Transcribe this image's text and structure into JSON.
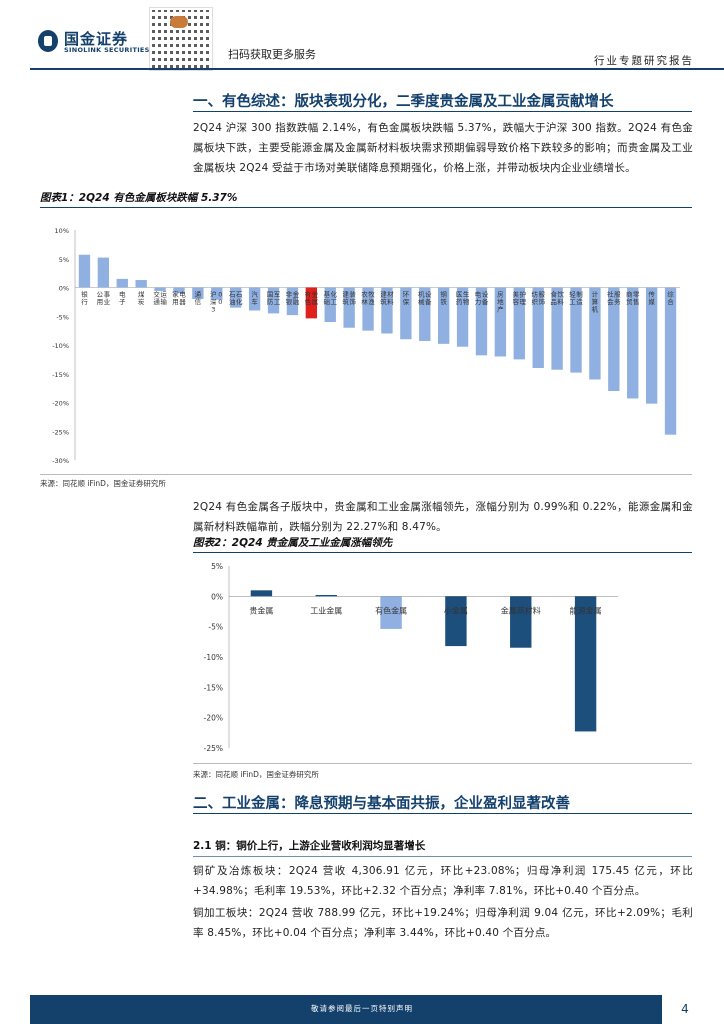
{
  "header": {
    "brand_cn": "国金证券",
    "brand_en": "SINOLINK SECURITIES",
    "scan_text": "扫码获取更多服务",
    "report_type": "行业专题研究报告"
  },
  "section1": {
    "title": "一、有色综述：版块表现分化，二季度贵金属及工业金属贡献增长",
    "para": "2Q24 沪深 300 指数跌幅 2.14%，有色金属板块跌幅 5.37%，跌幅大于沪深 300 指数。2Q24 有色金属板块下跌，主要受能源金属及金属新材料板块需求预期偏弱导致价格下跌较多的影响；而贵金属及工业金属板块 2Q24 受益于市场对美联储降息预期强化，价格上涨，并带动板块内企业业绩增长。"
  },
  "figure1": {
    "title": "图表1：2Q24 有色金属板块跌幅 5.37%",
    "source": "来源：同花顺 iFinD，国金证券研究所",
    "chart_data": {
      "type": "bar",
      "ylim": [
        -30,
        10
      ],
      "yticks": [
        "10%",
        "5%",
        "0%",
        "-5%",
        "-10%",
        "-15%",
        "-20%",
        "-25%",
        "-30%"
      ],
      "categories": [
        "银行",
        "公用事业",
        "电子",
        "煤炭",
        "交通运输",
        "家用电器",
        "通信",
        "沪深300",
        "石油石化",
        "汽车",
        "国防军工",
        "非银金融",
        "有色金属",
        "基础化工",
        "建筑装饰",
        "农林牧渔",
        "建筑材料",
        "环保",
        "机械设备",
        "钢铁",
        "医药生物",
        "电力设备",
        "房地产",
        "美容护理",
        "纺织服饰",
        "食品饮料",
        "轻工制造",
        "计算机",
        "社会服务",
        "商贸零售",
        "传媒",
        "综合"
      ],
      "values": [
        5.7,
        5.2,
        1.5,
        1.3,
        -0.6,
        -1.0,
        -2.0,
        -2.14,
        -3.5,
        -4.0,
        -4.5,
        -4.8,
        -5.37,
        -6.0,
        -7.0,
        -7.5,
        -8.0,
        -9.0,
        -9.3,
        -9.8,
        -10.3,
        -11.8,
        -12.0,
        -12.5,
        -14.0,
        -14.3,
        -14.8,
        -16.0,
        -18.0,
        -19.3,
        -20.2,
        -25.6
      ],
      "highlight_color": "#e0201b",
      "bar_color": "#8fb0e0"
    }
  },
  "mid_para": "2Q24 有色金属各子版块中，贵金属和工业金属涨幅领先，涨幅分别为 0.99%和 0.22%，能源金属和金属新材料跌幅靠前，跌幅分别为 22.27%和 8.47%。",
  "figure2": {
    "title": "图表2：2Q24 贵金属及工业金属涨幅领先",
    "source": "来源：同花顺 iFinD，国金证券研究所",
    "chart_data": {
      "type": "bar",
      "ylim": [
        -25,
        5
      ],
      "yticks": [
        "5%",
        "0%",
        "-5%",
        "-10%",
        "-15%",
        "-20%",
        "-25%"
      ],
      "categories": [
        "贵金属",
        "工业金属",
        "有色金属",
        "小金属",
        "金属新材料",
        "能源金属"
      ],
      "values": [
        0.99,
        0.22,
        -5.37,
        -8.2,
        -8.47,
        -22.27
      ],
      "bar_color": "#1c4f7c",
      "highlight_color": "#8fb0e0"
    }
  },
  "section2": {
    "title": "二、工业金属：降息预期与基本面共振，企业盈利显著改善",
    "sub_title": "2.1 铜：铜价上行，上游企业营收利润均显著增长",
    "para1": "铜矿及冶炼板块：2Q24 营收 4,306.91 亿元，环比+23.08%；归母净利润 175.45 亿元，环比+34.98%；毛利率 19.53%，环比+2.32 个百分点；净利率 7.81%，环比+0.40 个百分点。",
    "para2": "铜加工板块：2Q24 营收 788.99 亿元，环比+19.24%；归母净利润 9.04 亿元，环比+2.09%；毛利率 8.45%，环比+0.04 个百分点；净利率 3.44%，环比+0.40 个百分点。"
  },
  "footer": {
    "disclaimer": "敬请参阅最后一页特别声明",
    "page": "4"
  }
}
